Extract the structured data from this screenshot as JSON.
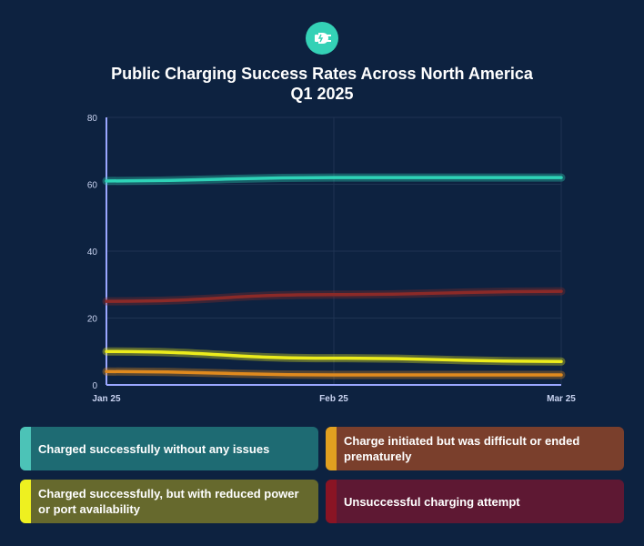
{
  "header": {
    "logo_icon": "ev-plug-icon",
    "title_line1": "Public Charging Success Rates Across North America",
    "title_line2": "Q1 2025"
  },
  "colors": {
    "background": "#0d2240",
    "axis": "#9aa7ff",
    "grid": "#1e3352",
    "tick_text": "#c9d3f0"
  },
  "chart_data": {
    "type": "line",
    "title": "Public Charging Success Rates Across North America Q1 2025",
    "x": [
      "Jan 25",
      "Feb 25",
      "Mar 25"
    ],
    "ylim": [
      0,
      80
    ],
    "yticks": [
      0,
      20,
      40,
      60,
      80
    ],
    "xlabel": "",
    "ylabel": "",
    "grid": true,
    "legend_position": "bottom",
    "series": [
      {
        "name": "Charged successfully without any issues",
        "values": [
          61,
          62,
          62
        ],
        "color": "#2ed3b7",
        "legend_bg": "#1e6b73",
        "swatch": "#4cc3b7"
      },
      {
        "name": "Charge initiated but was difficult or ended prematurely",
        "values": [
          4,
          3,
          3
        ],
        "color": "#e08a1e",
        "legend_bg": "#7a3f2c",
        "swatch": "#e0a020"
      },
      {
        "name": "Charged successfully, but with reduced power or port availability",
        "values": [
          10,
          8,
          7
        ],
        "color": "#ecec1c",
        "legend_bg": "#66692d",
        "swatch": "#eef020"
      },
      {
        "name": "Unsuccessful charging attempt",
        "values": [
          25,
          27,
          28
        ],
        "color": "#8b2a28",
        "legend_bg": "#5e1833",
        "swatch": "#8a1424"
      }
    ]
  }
}
